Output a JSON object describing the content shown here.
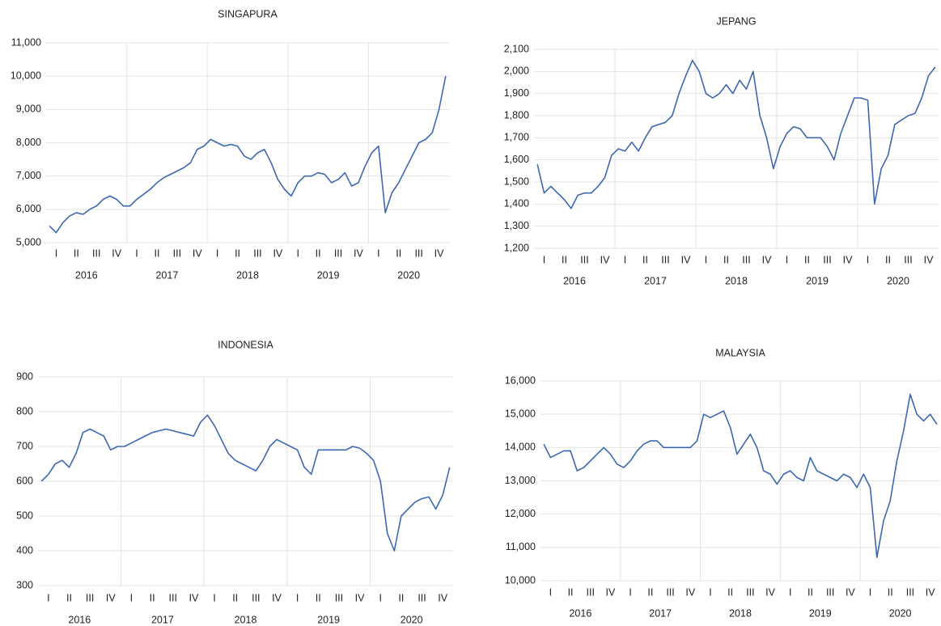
{
  "chart_data": [
    {
      "type": "line",
      "title": "SINGAPURA",
      "quarters": [
        "I",
        "II",
        "III",
        "IV",
        "I",
        "II",
        "III",
        "IV",
        "I",
        "II",
        "III",
        "IV",
        "I",
        "II",
        "III",
        "IV",
        "I",
        "II",
        "III",
        "IV"
      ],
      "years": [
        "2016",
        "2017",
        "2018",
        "2019",
        "2020"
      ],
      "series": [
        {
          "color": "#3d68b0",
          "values": [
            5500,
            5300,
            5600,
            5800,
            5900,
            5850,
            6000,
            6100,
            6300,
            6400,
            6300,
            6100,
            6100,
            6300,
            6450,
            6600,
            6800,
            6950,
            7050,
            7150,
            7250,
            7400,
            7800,
            7900,
            8100,
            8000,
            7900,
            7950,
            7900,
            7600,
            7500,
            7700,
            7800,
            7400,
            6900,
            6600,
            6400,
            6800,
            7000,
            7000,
            7100,
            7050,
            6800,
            6900,
            7100,
            6700,
            6800,
            7300,
            7700,
            7900,
            5900,
            6500,
            6800,
            7200,
            7600,
            8000,
            8100,
            8300,
            9000,
            10000
          ]
        }
      ],
      "ylim": [
        5000,
        11000
      ],
      "yticks": [
        {
          "value": 5000,
          "label": "5,000"
        },
        {
          "value": 6000,
          "label": "6,000"
        },
        {
          "value": 7000,
          "label": "7,000"
        },
        {
          "value": 8000,
          "label": "8,000"
        },
        {
          "value": 9000,
          "label": "9,000"
        },
        {
          "value": 10000,
          "label": "10,000"
        },
        {
          "value": 11000,
          "label": "11,000"
        }
      ],
      "grid": true
    },
    {
      "type": "line",
      "title": "JEPANG",
      "quarters": [
        "I",
        "II",
        "III",
        "IV",
        "I",
        "II",
        "III",
        "IV",
        "I",
        "II",
        "III",
        "IV",
        "I",
        "II",
        "III",
        "IV",
        "I",
        "II",
        "III",
        "IV"
      ],
      "years": [
        "2016",
        "2017",
        "2018",
        "2019",
        "2020"
      ],
      "series": [
        {
          "color": "#3d68b0",
          "values": [
            1580,
            1450,
            1480,
            1450,
            1420,
            1380,
            1440,
            1450,
            1450,
            1480,
            1520,
            1620,
            1650,
            1640,
            1680,
            1640,
            1700,
            1750,
            1760,
            1770,
            1800,
            1900,
            1980,
            2050,
            2000,
            1900,
            1880,
            1900,
            1940,
            1900,
            1960,
            1920,
            2000,
            1800,
            1700,
            1560,
            1660,
            1720,
            1750,
            1740,
            1700,
            1700,
            1700,
            1660,
            1600,
            1720,
            1800,
            1880,
            1880,
            1870,
            1400,
            1560,
            1620,
            1760,
            1780,
            1800,
            1810,
            1880,
            1980,
            2020
          ]
        }
      ],
      "ylim": [
        1200,
        2100
      ],
      "yticks": [
        {
          "value": 1200,
          "label": "1,200"
        },
        {
          "value": 1300,
          "label": "1,300"
        },
        {
          "value": 1400,
          "label": "1,400"
        },
        {
          "value": 1500,
          "label": "1,500"
        },
        {
          "value": 1600,
          "label": "1,600"
        },
        {
          "value": 1700,
          "label": "1,700"
        },
        {
          "value": 1800,
          "label": "1,800"
        },
        {
          "value": 1900,
          "label": "1,900"
        },
        {
          "value": 2000,
          "label": "2,000"
        },
        {
          "value": 2100,
          "label": "2,100"
        }
      ],
      "grid": true
    },
    {
      "type": "line",
      "title": "INDONESIA",
      "quarters": [
        "I",
        "II",
        "III",
        "IV",
        "I",
        "II",
        "III",
        "IV",
        "I",
        "II",
        "III",
        "IV",
        "I",
        "II",
        "III",
        "IV",
        "I",
        "II",
        "III",
        "IV"
      ],
      "years": [
        "2016",
        "2017",
        "2018",
        "2019",
        "2020"
      ],
      "series": [
        {
          "color": "#3d68b0",
          "values": [
            600,
            620,
            650,
            660,
            640,
            680,
            740,
            750,
            740,
            730,
            690,
            700,
            700,
            710,
            720,
            730,
            740,
            745,
            750,
            745,
            740,
            735,
            730,
            770,
            790,
            760,
            720,
            680,
            660,
            650,
            640,
            630,
            660,
            700,
            720,
            710,
            700,
            690,
            640,
            620,
            690,
            690,
            690,
            690,
            690,
            700,
            695,
            680,
            660,
            600,
            450,
            400,
            500,
            520,
            540,
            550,
            555,
            520,
            560,
            640
          ]
        }
      ],
      "ylim": [
        300,
        900
      ],
      "yticks": [
        300,
        400,
        500,
        600,
        700,
        800,
        900
      ],
      "grid": true
    },
    {
      "type": "line",
      "title": "MALAYSIA",
      "quarters": [
        "I",
        "II",
        "III",
        "IV",
        "I",
        "II",
        "III",
        "IV",
        "I",
        "II",
        "III",
        "IV",
        "I",
        "II",
        "III",
        "IV",
        "I",
        "II",
        "III",
        "IV"
      ],
      "years": [
        "2016",
        "2017",
        "2018",
        "2019",
        "2020"
      ],
      "series": [
        {
          "color": "#3d68b0",
          "values": [
            14100,
            13700,
            13800,
            13900,
            13900,
            13300,
            13400,
            13600,
            13800,
            14000,
            13800,
            13500,
            13400,
            13600,
            13900,
            14100,
            14200,
            14200,
            14000,
            14000,
            14000,
            14000,
            14000,
            14200,
            15000,
            14900,
            15000,
            15100,
            14600,
            13800,
            14100,
            14400,
            14000,
            13300,
            13200,
            12900,
            13200,
            13300,
            13100,
            13000,
            13700,
            13300,
            13200,
            13100,
            13000,
            13200,
            13100,
            12800,
            13200,
            12800,
            10700,
            11800,
            12400,
            13600,
            14500,
            15600,
            15000,
            14800,
            15000,
            14700
          ]
        }
      ],
      "ylim": [
        10000,
        16000
      ],
      "yticks": [
        {
          "value": 10000,
          "label": "10,000"
        },
        {
          "value": 11000,
          "label": "11,000"
        },
        {
          "value": 12000,
          "label": "12,000"
        },
        {
          "value": 13000,
          "label": "13,000"
        },
        {
          "value": 14000,
          "label": "14,000"
        },
        {
          "value": 15000,
          "label": "15,000"
        },
        {
          "value": 16000,
          "label": "16,000"
        }
      ],
      "grid": true
    }
  ]
}
